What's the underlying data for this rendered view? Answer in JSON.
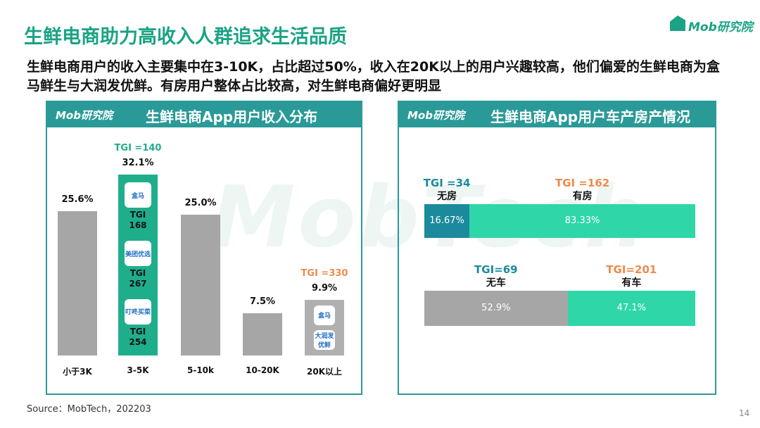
{
  "title": "生鲜电商助力高收入人群追求生活品质",
  "subtitle": "生鲜电商用户的收入主要集中在3-10K，占比超过50%，收入在20K以上的用户兴趣较高，他们偏爱的生鲜电商为盒马鲜生与大润发优鲜。有房用户整体占比较高，对生鲜电商偏好更明显",
  "logo": "Mob研究院",
  "watermark": "MobTech",
  "source": "Source：MobTech，202203",
  "page_number": "14",
  "chart_data": [
    {
      "type": "bar",
      "title": "生鲜电商App用户收入分布",
      "logo": "Mob研究院",
      "categories": [
        "小于3K",
        "3-5K",
        "5-10k",
        "10-20K",
        "20K以上"
      ],
      "values": [
        25.6,
        32.1,
        25.0,
        7.5,
        9.9
      ],
      "value_labels": [
        "25.6%",
        "32.1%",
        "25.0%",
        "7.5%",
        "9.9%"
      ],
      "colors": [
        "#a6a6a6",
        "#1fae8c",
        "#a6a6a6",
        "#a6a6a6",
        "#b0b0b0"
      ],
      "tgi": [
        null,
        "TGI =140",
        null,
        null,
        "TGI =330"
      ],
      "tgi_colors": [
        null,
        "#1fae8c",
        null,
        null,
        "#ee8a4a"
      ],
      "apps": [
        null,
        [
          {
            "icon": "盒马",
            "tgi": "TGI\n168"
          },
          {
            "icon": "美团优选",
            "tgi": "TGI\n267"
          },
          {
            "icon": "叮咚买菜",
            "tgi": "TGI\n254"
          }
        ],
        null,
        null,
        [
          {
            "icon": "盒马"
          },
          {
            "icon": "大润发优鲜"
          }
        ]
      ]
    },
    {
      "type": "stacked_bar",
      "title": "生鲜电商App用户车产房产情况",
      "logo": "Mob研究院",
      "series": [
        {
          "name": "无房",
          "color": "#1b8a9c",
          "values": [
            16.67
          ],
          "value_labels": [
            "16.67%"
          ],
          "tgi": "TGI =34",
          "tgi_color": "#1b8a9c"
        },
        {
          "name": "有房",
          "color": "#2fd6a8",
          "values": [
            83.33
          ],
          "value_labels": [
            "83.33%"
          ],
          "tgi": "TGI =162",
          "tgi_color": "#ee8a4a"
        }
      ]
    },
    {
      "type": "stacked_bar",
      "series": [
        {
          "name": "无车",
          "color": "#a6a6a6",
          "values": [
            52.9
          ],
          "value_labels": [
            "52.9%"
          ],
          "tgi": "TGI=69",
          "tgi_color": "#1b8a9c"
        },
        {
          "name": "有车",
          "color": "#2fd6a8",
          "values": [
            47.1
          ],
          "value_labels": [
            "47.1%"
          ],
          "tgi": "TGI=201",
          "tgi_color": "#ee8a4a"
        }
      ]
    }
  ]
}
